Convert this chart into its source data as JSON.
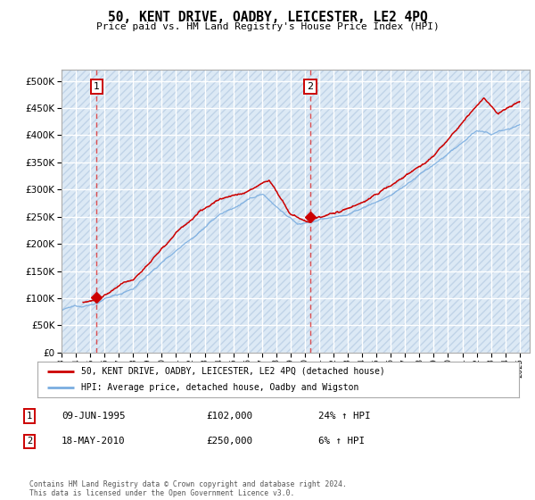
{
  "title": "50, KENT DRIVE, OADBY, LEICESTER, LE2 4PQ",
  "subtitle": "Price paid vs. HM Land Registry's House Price Index (HPI)",
  "background_color": "#dce9f5",
  "hatch_bg_color": "#c5d8ec",
  "grid_color": "#ffffff",
  "y_ticks": [
    0,
    50000,
    100000,
    150000,
    200000,
    250000,
    300000,
    350000,
    400000,
    450000,
    500000
  ],
  "x_start_year": 1993,
  "x_end_year": 2025,
  "sale1_date": 1995.44,
  "sale1_price": 102000,
  "sale2_date": 2010.38,
  "sale2_price": 250000,
  "red_line_color": "#cc0000",
  "blue_line_color": "#7aade0",
  "marker_color": "#cc0000",
  "dashed_line_color": "#dd3333",
  "legend_label_red": "50, KENT DRIVE, OADBY, LEICESTER, LE2 4PQ (detached house)",
  "legend_label_blue": "HPI: Average price, detached house, Oadby and Wigston",
  "table_rows": [
    {
      "num": "1",
      "date": "09-JUN-1995",
      "price": "£102,000",
      "hpi": "24% ↑ HPI"
    },
    {
      "num": "2",
      "date": "18-MAY-2010",
      "price": "£250,000",
      "hpi": "6% ↑ HPI"
    }
  ],
  "footer": "Contains HM Land Registry data © Crown copyright and database right 2024.\nThis data is licensed under the Open Government Licence v3.0."
}
